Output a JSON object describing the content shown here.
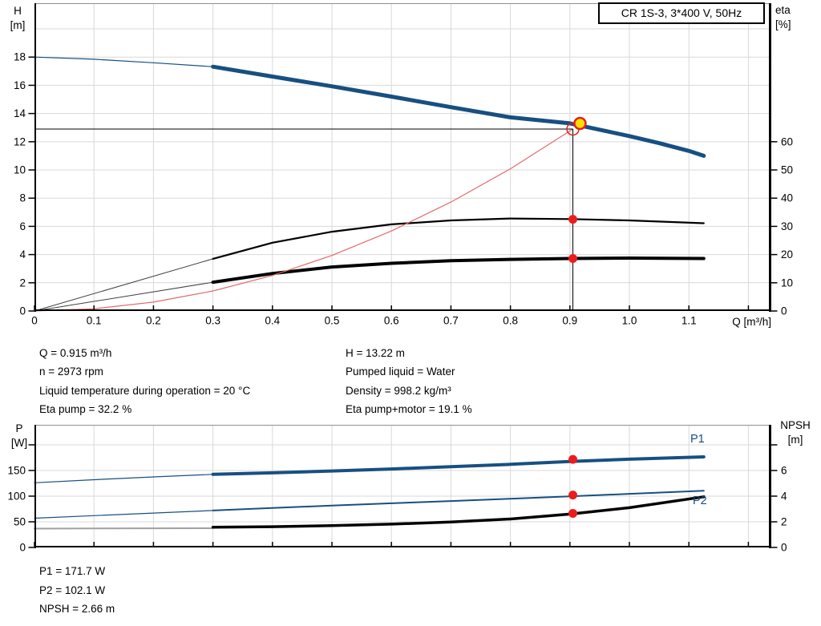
{
  "title_box": "CR 1S-3, 3*400 V, 50Hz",
  "colors": {
    "curve_blue": "#174F82",
    "curve_black": "#000000",
    "system_red": "#E46A6A",
    "marker_red": "#E02020",
    "dot_red": "#ED1C1C",
    "duty_yellow": "#FFDF00",
    "grid_grey": "#D9D9D9",
    "frame_grey": "#909090",
    "lead_grey": "#A0A0A0",
    "lead_dark": "#404040"
  },
  "info": {
    "left": [
      "Q = 0.915 m³/h",
      "n = 2973 rpm",
      "Liquid temperature during operation = 20 °C",
      "Eta pump = 32.2 %"
    ],
    "right": [
      "H = 13.22 m",
      "Pumped liquid = Water",
      "Density = 998.2 kg/m³",
      "Eta pump+motor = 19.1 %"
    ]
  },
  "results": [
    "P1 = 171.7 W",
    "P2 = 102.1 W",
    "NPSH = 2.66 m"
  ],
  "chart_data": [
    {
      "type": "line",
      "name": "hq-eta-chart",
      "x_axis": {
        "label": "Q [m³/h]",
        "min": 0,
        "max": 1.2385,
        "ticks": [
          0,
          0.1,
          0.2,
          0.3,
          0.4,
          0.5,
          0.6,
          0.7,
          0.8,
          0.9,
          1.0,
          1.1,
          1.2
        ],
        "tick_labels": [
          "0",
          "0.1",
          "0.2",
          "0.3",
          "0.4",
          "0.5",
          "0.6",
          "0.7",
          "0.8",
          "0.9",
          "1.0",
          "1.1",
          ""
        ]
      },
      "y_left": {
        "label": [
          "H",
          "[m]"
        ],
        "min": 0,
        "max": 21.82,
        "ticks": [
          0,
          2,
          4,
          6,
          8,
          10,
          12,
          14,
          16,
          18
        ],
        "tick_labels": [
          "0",
          "2",
          "4",
          "6",
          "8",
          "10",
          "12",
          "14",
          "16",
          "18"
        ],
        "grid_extra": [
          20
        ]
      },
      "y_right": {
        "label": [
          "eta",
          "[%]"
        ],
        "min": 0,
        "max": 109.1,
        "ticks": [
          0,
          10,
          20,
          30,
          40,
          50,
          60
        ],
        "tick_labels": [
          "0",
          "10",
          "20",
          "30",
          "40",
          "50",
          "60"
        ]
      },
      "series": [
        {
          "name": "head-lead",
          "axis": "left",
          "color": "#174F82",
          "width": 1.2,
          "points": [
            [
              0,
              18.0
            ],
            [
              0.1,
              17.85
            ],
            [
              0.2,
              17.6
            ],
            [
              0.3,
              17.32
            ]
          ]
        },
        {
          "name": "head",
          "axis": "left",
          "color": "#174F82",
          "width": 5,
          "points": [
            [
              0.3,
              17.32
            ],
            [
              0.4,
              16.62
            ],
            [
              0.5,
              15.93
            ],
            [
              0.6,
              15.2
            ],
            [
              0.7,
              14.45
            ],
            [
              0.8,
              13.73
            ],
            [
              0.9,
              13.3
            ],
            [
              1.0,
              12.4
            ],
            [
              1.05,
              11.9
            ],
            [
              1.1,
              11.35
            ],
            [
              1.125,
              11.0
            ]
          ]
        },
        {
          "name": "eta-pump-lead",
          "axis": "right",
          "color": "#404040",
          "width": 1,
          "points": [
            [
              0,
              0
            ],
            [
              0.3,
              18.5
            ]
          ]
        },
        {
          "name": "eta-pump",
          "axis": "right",
          "color": "#000000",
          "width": 2.2,
          "points": [
            [
              0.3,
              18.5
            ],
            [
              0.4,
              24.2
            ],
            [
              0.5,
              28.1
            ],
            [
              0.6,
              30.7
            ],
            [
              0.7,
              32.1
            ],
            [
              0.8,
              32.8
            ],
            [
              0.9,
              32.6
            ],
            [
              1.0,
              32.1
            ],
            [
              1.125,
              31.1
            ]
          ]
        },
        {
          "name": "eta-motor-lead",
          "axis": "right",
          "color": "#404040",
          "width": 1,
          "points": [
            [
              0,
              0
            ],
            [
              0.3,
              10.2
            ]
          ]
        },
        {
          "name": "eta-motor",
          "axis": "right",
          "color": "#000000",
          "width": 4,
          "points": [
            [
              0.3,
              10.2
            ],
            [
              0.4,
              13.3
            ],
            [
              0.5,
              15.6
            ],
            [
              0.6,
              16.9
            ],
            [
              0.7,
              17.8
            ],
            [
              0.8,
              18.3
            ],
            [
              0.9,
              18.6
            ],
            [
              1.0,
              18.75
            ],
            [
              1.125,
              18.6
            ]
          ]
        },
        {
          "name": "system-curve",
          "axis": "left",
          "color": "#E46A6A",
          "width": 1.2,
          "points": [
            [
              0,
              0
            ],
            [
              0.1,
              0.16
            ],
            [
              0.2,
              0.63
            ],
            [
              0.3,
              1.42
            ],
            [
              0.4,
              2.52
            ],
            [
              0.5,
              3.94
            ],
            [
              0.6,
              5.67
            ],
            [
              0.7,
              7.72
            ],
            [
              0.8,
              10.08
            ],
            [
              0.9,
              12.76
            ],
            [
              0.905,
              12.9
            ]
          ]
        }
      ],
      "markers": {
        "crosshair": {
          "q": 0.905,
          "h": 12.9
        },
        "open_circle": {
          "q": 0.905,
          "h": 12.9
        },
        "duty_point": {
          "q": 0.917,
          "h": 13.3
        },
        "dots": [
          {
            "axis": "right",
            "q": 0.905,
            "v": 32.5
          },
          {
            "axis": "right",
            "q": 0.905,
            "v": 18.6
          }
        ]
      }
    },
    {
      "type": "line",
      "name": "power-npsh-chart",
      "x_axis": {
        "label": "",
        "min": 0,
        "max": 1.2385,
        "ticks": [
          0,
          0.1,
          0.2,
          0.3,
          0.4,
          0.5,
          0.6,
          0.7,
          0.8,
          0.9,
          1.0,
          1.1,
          1.2
        ],
        "tick_labels": null
      },
      "y_left": {
        "label": [
          "P",
          "[W]"
        ],
        "min": 0,
        "max": 239,
        "ticks": [
          0,
          50,
          100,
          150,
          200
        ],
        "tick_labels": [
          "0",
          "50",
          "100",
          "150",
          ""
        ],
        "grid_extra": []
      },
      "y_right": {
        "label": [
          "NPSH",
          "[m]"
        ],
        "min": 0,
        "max": 9.5625,
        "ticks": [
          0,
          2,
          4,
          6,
          8
        ],
        "tick_labels": [
          "0",
          "2",
          "4",
          "6",
          ""
        ]
      },
      "series": [
        {
          "name": "p1-lead",
          "axis": "left",
          "color": "#174F82",
          "width": 1.2,
          "points": [
            [
              0,
              126
            ],
            [
              0.1,
              132
            ],
            [
              0.2,
              137.5
            ],
            [
              0.3,
              142.5
            ]
          ]
        },
        {
          "name": "p1",
          "axis": "left",
          "color": "#174F82",
          "width": 4,
          "points": [
            [
              0.3,
              142.5
            ],
            [
              0.4,
              145.5
            ],
            [
              0.5,
              149
            ],
            [
              0.6,
              153
            ],
            [
              0.7,
              157.5
            ],
            [
              0.8,
              162
            ],
            [
              0.9,
              167.5
            ],
            [
              1.0,
              172
            ],
            [
              1.125,
              176.5
            ]
          ]
        },
        {
          "name": "p2-lead",
          "axis": "left",
          "color": "#174F82",
          "width": 1.2,
          "points": [
            [
              0,
              57
            ],
            [
              0.1,
              62
            ],
            [
              0.2,
              67
            ],
            [
              0.3,
              72
            ]
          ]
        },
        {
          "name": "p2",
          "axis": "left",
          "color": "#174F82",
          "width": 2,
          "points": [
            [
              0.3,
              72
            ],
            [
              0.4,
              77
            ],
            [
              0.5,
              81.5
            ],
            [
              0.6,
              86
            ],
            [
              0.7,
              90.5
            ],
            [
              0.8,
              95
            ],
            [
              0.9,
              99.5
            ],
            [
              1.0,
              104.5
            ],
            [
              1.125,
              110.5
            ]
          ]
        },
        {
          "name": "npsh-lead",
          "axis": "right",
          "color": "#A0A0A0",
          "width": 2,
          "points": [
            [
              0,
              1.47
            ],
            [
              0.3,
              1.5
            ]
          ]
        },
        {
          "name": "npsh",
          "axis": "right",
          "color": "#000000",
          "width": 3.5,
          "points": [
            [
              0.3,
              1.58
            ],
            [
              0.4,
              1.62
            ],
            [
              0.5,
              1.7
            ],
            [
              0.6,
              1.82
            ],
            [
              0.7,
              1.98
            ],
            [
              0.8,
              2.22
            ],
            [
              0.9,
              2.6
            ],
            [
              1.0,
              3.1
            ],
            [
              1.125,
              3.95
            ]
          ]
        }
      ],
      "series_labels": [
        {
          "text": "P1"
        },
        {
          "text": "P2"
        }
      ],
      "markers": {
        "dots": [
          {
            "axis": "left",
            "q": 0.905,
            "v": 171.7
          },
          {
            "axis": "left",
            "q": 0.905,
            "v": 102.1
          },
          {
            "axis": "right",
            "q": 0.905,
            "v": 2.66
          }
        ]
      }
    }
  ]
}
